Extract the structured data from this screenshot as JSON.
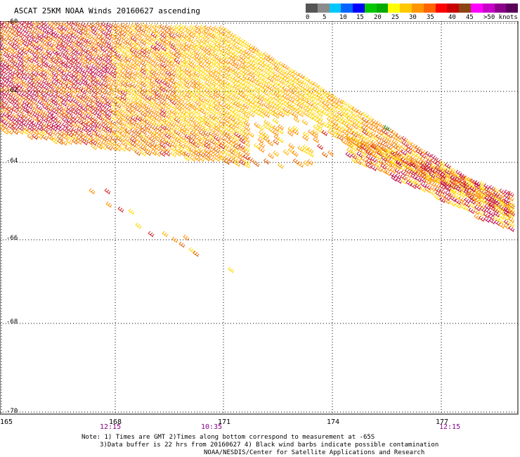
{
  "title": "ASCAT 25KM NOAA Winds 20160627 ascending",
  "legend": {
    "colors": [
      "#555555",
      "#8c8c8c",
      "#00c8ff",
      "#0064ff",
      "#0000ff",
      "#00c800",
      "#00aa00",
      "#ffff00",
      "#ffc800",
      "#ff9600",
      "#ff6400",
      "#ff0000",
      "#c80000",
      "#8b4513",
      "#ff00ff",
      "#c800c8",
      "#8b008b",
      "#5a005a"
    ],
    "labels": [
      "0",
      "5",
      "10",
      "15",
      "20",
      "25",
      "30",
      "35",
      "40",
      "45",
      ">50 knots"
    ]
  },
  "map": {
    "lat_labels": [
      "-60",
      "-62",
      "-64",
      "-66",
      "-68",
      "-70"
    ],
    "lon_labels": [
      "165",
      "168",
      "171",
      "174",
      "177"
    ],
    "time_labels": [
      "12:15",
      "10:35",
      "12:15"
    ]
  },
  "notes": {
    "line1": "Note: 1) Times are GMT 2)Times along bottom correspond to measurement at -65S",
    "line2": "3)Data buffer is 22 hrs from 20160627 4) Black wind barbs indicate possible contamination",
    "line3": "NOAA/NESDIS/Center for Satellite Applications and Research"
  },
  "barb_colors": {
    "yellow": "#ffd700",
    "light_orange": "#ffb400",
    "orange": "#ff8c00",
    "dark_orange": "#e06000",
    "red": "#d02020",
    "crimson": "#c0104a",
    "green": "#00a050"
  }
}
